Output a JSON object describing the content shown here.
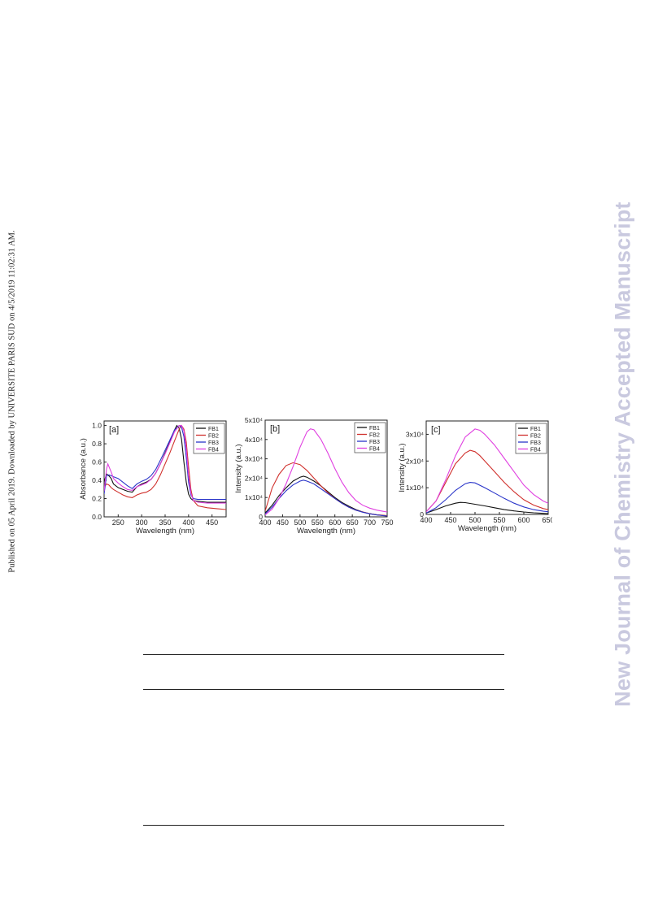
{
  "header": {
    "publication_note": "Published on 05 April 2019. Downloaded by UNIVERSITE PARIS SUD on 4/5/2019 11:02:31 AM."
  },
  "watermark": {
    "text": "New Journal of Chemistry Accepted Manuscript",
    "color": "#c9c9df"
  },
  "colors": {
    "FB1": "#111111",
    "FB2": "#d0312d",
    "FB3": "#2a35c9",
    "FB4": "#e040e0"
  },
  "chart_data": [
    {
      "type": "line",
      "panel_label": "[a]",
      "xlabel": "Wavelength (nm)",
      "ylabel": "Absorbance (a.u.)",
      "xlim": [
        220,
        480
      ],
      "ylim": [
        0,
        1.05
      ],
      "xticks": [
        "250",
        "300",
        "350",
        "400",
        "450"
      ],
      "yticks": [
        "0.0",
        "0.2",
        "0.4",
        "0.6",
        "0.8",
        "1.0"
      ],
      "legend": "top-right",
      "series": [
        {
          "name": "FB1",
          "x": [
            220,
            225,
            230,
            235,
            240,
            250,
            260,
            270,
            280,
            290,
            300,
            310,
            320,
            330,
            340,
            350,
            360,
            370,
            375,
            380,
            385,
            390,
            395,
            400,
            405,
            410,
            420,
            440,
            460,
            480
          ],
          "y": [
            0.38,
            0.47,
            0.45,
            0.42,
            0.36,
            0.32,
            0.3,
            0.28,
            0.27,
            0.33,
            0.36,
            0.38,
            0.41,
            0.48,
            0.58,
            0.7,
            0.82,
            0.95,
            1.0,
            0.97,
            0.85,
            0.6,
            0.38,
            0.25,
            0.2,
            0.18,
            0.17,
            0.16,
            0.16,
            0.16
          ]
        },
        {
          "name": "FB2",
          "x": [
            220,
            225,
            230,
            235,
            240,
            250,
            260,
            270,
            280,
            290,
            300,
            310,
            320,
            330,
            340,
            350,
            360,
            370,
            380,
            385,
            390,
            395,
            400,
            405,
            410,
            420,
            440,
            460,
            480
          ],
          "y": [
            0.32,
            0.36,
            0.35,
            0.32,
            0.3,
            0.27,
            0.24,
            0.22,
            0.21,
            0.24,
            0.26,
            0.27,
            0.3,
            0.36,
            0.46,
            0.58,
            0.7,
            0.83,
            0.96,
            1.0,
            0.96,
            0.82,
            0.55,
            0.3,
            0.18,
            0.12,
            0.1,
            0.09,
            0.08
          ]
        },
        {
          "name": "FB3",
          "x": [
            220,
            225,
            230,
            235,
            240,
            250,
            260,
            270,
            280,
            290,
            300,
            310,
            320,
            330,
            340,
            350,
            360,
            370,
            380,
            385,
            390,
            395,
            400,
            405,
            410,
            420,
            440,
            460,
            480
          ],
          "y": [
            0.25,
            0.45,
            0.46,
            0.45,
            0.44,
            0.42,
            0.38,
            0.34,
            0.31,
            0.36,
            0.39,
            0.41,
            0.45,
            0.52,
            0.62,
            0.73,
            0.84,
            0.95,
            1.0,
            0.98,
            0.88,
            0.65,
            0.38,
            0.24,
            0.2,
            0.19,
            0.19,
            0.19,
            0.19
          ]
        },
        {
          "name": "FB4",
          "x": [
            220,
            225,
            228,
            232,
            236,
            240,
            250,
            260,
            270,
            280,
            290,
            300,
            310,
            320,
            330,
            340,
            350,
            360,
            370,
            380,
            385,
            390,
            395,
            400,
            405,
            410,
            420,
            440,
            460,
            480
          ],
          "y": [
            0.28,
            0.52,
            0.58,
            0.53,
            0.48,
            0.42,
            0.37,
            0.33,
            0.3,
            0.29,
            0.33,
            0.35,
            0.37,
            0.41,
            0.48,
            0.58,
            0.69,
            0.81,
            0.93,
            1.0,
            1.0,
            0.94,
            0.75,
            0.45,
            0.26,
            0.18,
            0.16,
            0.15,
            0.15,
            0.15
          ]
        }
      ]
    },
    {
      "type": "line",
      "panel_label": "[b]",
      "xlabel": "Wavelength (nm)",
      "ylabel": "Intensity (a.u.)",
      "xlim": [
        400,
        750
      ],
      "ylim": [
        0,
        50000
      ],
      "xticks": [
        "400",
        "450",
        "500",
        "550",
        "600",
        "650",
        "700",
        "750"
      ],
      "yticks": [
        "0",
        "1x10⁴",
        "2x10⁴",
        "3x10⁴",
        "4x10⁴",
        "5x10⁴"
      ],
      "legend": "top-right",
      "series": [
        {
          "name": "FB1",
          "x": [
            400,
            420,
            440,
            460,
            480,
            500,
            510,
            520,
            540,
            560,
            580,
            600,
            620,
            640,
            660,
            680,
            700,
            720,
            740,
            750
          ],
          "y": [
            2000,
            6000,
            11000,
            15000,
            18500,
            20500,
            21000,
            20500,
            18500,
            16000,
            13000,
            10000,
            7500,
            5500,
            3800,
            2500,
            1600,
            1000,
            700,
            500
          ]
        },
        {
          "name": "FB2",
          "x": [
            400,
            410,
            420,
            440,
            460,
            480,
            500,
            520,
            540,
            560,
            580,
            600,
            620,
            640,
            660,
            680,
            700,
            720,
            740,
            750
          ],
          "y": [
            3000,
            9000,
            15000,
            22000,
            26500,
            28000,
            27000,
            24000,
            20000,
            16000,
            12500,
            9500,
            7000,
            5000,
            3500,
            2500,
            1700,
            1100,
            800,
            600
          ]
        },
        {
          "name": "FB3",
          "x": [
            400,
            420,
            440,
            460,
            480,
            500,
            510,
            520,
            540,
            560,
            580,
            600,
            620,
            640,
            660,
            680,
            700,
            720,
            740,
            750
          ],
          "y": [
            1500,
            5000,
            9500,
            13500,
            16500,
            18500,
            19000,
            18500,
            17000,
            14500,
            12000,
            9500,
            7000,
            5000,
            3500,
            2400,
            1600,
            1000,
            600,
            400
          ]
        },
        {
          "name": "FB4",
          "x": [
            400,
            420,
            440,
            460,
            480,
            500,
            520,
            530,
            540,
            560,
            580,
            600,
            620,
            640,
            660,
            680,
            700,
            720,
            740,
            750
          ],
          "y": [
            1000,
            4000,
            9500,
            17000,
            26000,
            36000,
            44000,
            45500,
            45000,
            40000,
            33000,
            25000,
            18000,
            12500,
            8500,
            6000,
            4500,
            3500,
            2800,
            2500
          ]
        }
      ]
    },
    {
      "type": "line",
      "panel_label": "[c]",
      "xlabel": "Wavelength (nm)",
      "ylabel": "Intensity (a.u.)",
      "xlim": [
        400,
        650
      ],
      "ylim": [
        0,
        35000
      ],
      "xticks": [
        "400",
        "450",
        "500",
        "550",
        "600",
        "650"
      ],
      "yticks": [
        "0",
        "1x10⁴",
        "2x10⁴",
        "3x10⁴"
      ],
      "legend": "top-right",
      "series": [
        {
          "name": "FB1",
          "x": [
            400,
            420,
            440,
            460,
            470,
            480,
            500,
            520,
            540,
            560,
            580,
            600,
            620,
            640,
            650
          ],
          "y": [
            500,
            1800,
            3200,
            4200,
            4500,
            4400,
            3800,
            3200,
            2500,
            1800,
            1300,
            900,
            600,
            400,
            300
          ]
        },
        {
          "name": "FB2",
          "x": [
            400,
            420,
            440,
            460,
            480,
            490,
            500,
            510,
            520,
            540,
            560,
            580,
            600,
            620,
            640,
            650
          ],
          "y": [
            1000,
            5000,
            12000,
            19000,
            23000,
            24000,
            23500,
            22000,
            20000,
            16000,
            12000,
            8500,
            5500,
            3500,
            2200,
            1800
          ]
        },
        {
          "name": "FB3",
          "x": [
            400,
            420,
            440,
            460,
            480,
            490,
            500,
            520,
            540,
            560,
            580,
            600,
            620,
            640,
            650
          ],
          "y": [
            500,
            2500,
            5500,
            9000,
            11500,
            12000,
            11800,
            10000,
            8000,
            6000,
            4200,
            2800,
            1800,
            1200,
            1000
          ]
        },
        {
          "name": "FB4",
          "x": [
            400,
            420,
            440,
            460,
            480,
            500,
            510,
            520,
            540,
            560,
            580,
            600,
            620,
            640,
            650
          ],
          "y": [
            1000,
            5000,
            13000,
            22000,
            29000,
            32000,
            31500,
            30000,
            26000,
            21000,
            16000,
            11000,
            7500,
            5000,
            4200
          ]
        }
      ]
    }
  ]
}
